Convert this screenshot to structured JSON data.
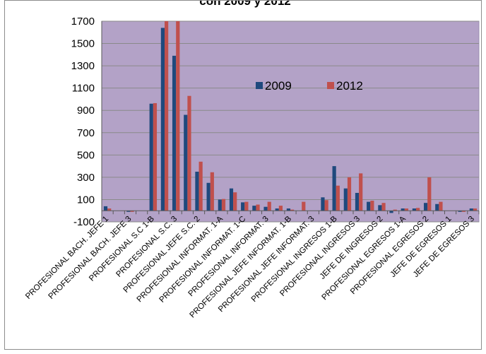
{
  "chart_data": {
    "type": "bar",
    "title": "con 2009 y 2012",
    "ylim": [
      -100,
      1700
    ],
    "yticks": [
      -100,
      100,
      300,
      500,
      700,
      900,
      1100,
      1300,
      1500,
      1700
    ],
    "grid": true,
    "legend_position": "center-right",
    "plot_background": "#b3a2c7",
    "categories": [
      "PROFESIONAL BACH. JEFE 1",
      "",
      "PROFESIONAL BACH. JEFE 3",
      "",
      "PROFESIONAL S.C 1-B",
      "",
      "PROFESIONAL S.C. 3",
      "",
      "PROFESIONAL JEFE S.C. 2",
      "",
      "PROFESIONAL INFORMAT. 1-A",
      "",
      "PROFESIONAL INFORMAT. 1-C",
      "",
      "PROFESIONAL INFORMAT. 3",
      "",
      "PROFESIONAL JEFE INFORMAT. 1-B",
      "",
      "PROFESIONAL JEFE INFORMAT. 3",
      "",
      "PROFESIONAL INGRESOS 1-B",
      "",
      "PROFESIONAL INGRESOS 3",
      "",
      "JEFE DE INGRESOS 2",
      "",
      "PROFESIONAL EGRESOS 1-A",
      "",
      "PROFESIONAL EGRESOS 2",
      "",
      "JEFE DE EGRESOS 1",
      "",
      "JEFE DE EGRESOS 3"
    ],
    "series": [
      {
        "name": "2009",
        "color": "#1f497d",
        "values": [
          40,
          0,
          -10,
          0,
          960,
          1640,
          1390,
          860,
          350,
          250,
          100,
          200,
          75,
          45,
          35,
          20,
          20,
          0,
          0,
          120,
          400,
          200,
          160,
          80,
          50,
          -20,
          20,
          20,
          70,
          60,
          0,
          -10,
          20
        ]
      },
      {
        "name": "2012",
        "color": "#c0504d",
        "values": [
          20,
          0,
          -10,
          0,
          965,
          1700,
          1700,
          1030,
          440,
          345,
          105,
          165,
          80,
          55,
          80,
          45,
          10,
          80,
          0,
          95,
          225,
          300,
          335,
          90,
          70,
          10,
          20,
          25,
          300,
          80,
          0,
          -10,
          20
        ]
      }
    ]
  }
}
